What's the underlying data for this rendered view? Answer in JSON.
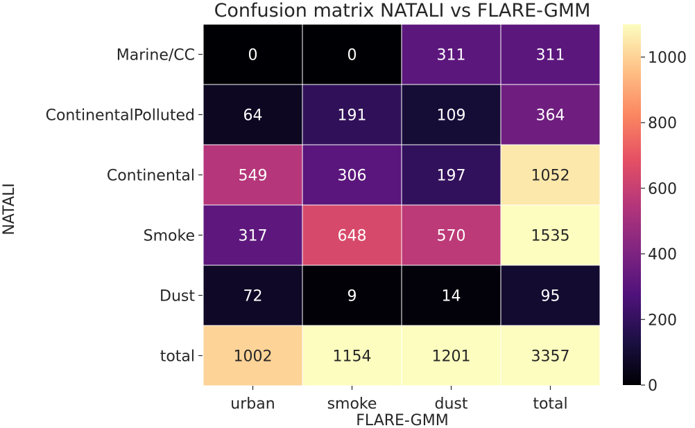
{
  "chart_data": {
    "type": "heatmap",
    "title": "Confusion matrix NATALI vs FLARE-GMM",
    "xlabel": "FLARE-GMM",
    "ylabel": "NATALI",
    "x_categories": [
      "urban",
      "smoke",
      "dust",
      "total"
    ],
    "y_categories": [
      "Marine/CC",
      "ContinentalPolluted",
      "Continental",
      "Smoke",
      "Dust",
      "total"
    ],
    "values": [
      [
        0,
        0,
        311,
        311
      ],
      [
        64,
        191,
        109,
        364
      ],
      [
        549,
        306,
        197,
        1052
      ],
      [
        317,
        648,
        570,
        1535
      ],
      [
        72,
        9,
        14,
        95
      ],
      [
        1002,
        1154,
        1201,
        3357
      ]
    ],
    "colormap": "magma",
    "color_range": [
      0,
      1100
    ],
    "colorbar_ticks": [
      0,
      200,
      400,
      600,
      800,
      1000
    ],
    "colorbar_tick_labels": [
      "0",
      "200",
      "400",
      "600",
      "800",
      "1000"
    ]
  }
}
